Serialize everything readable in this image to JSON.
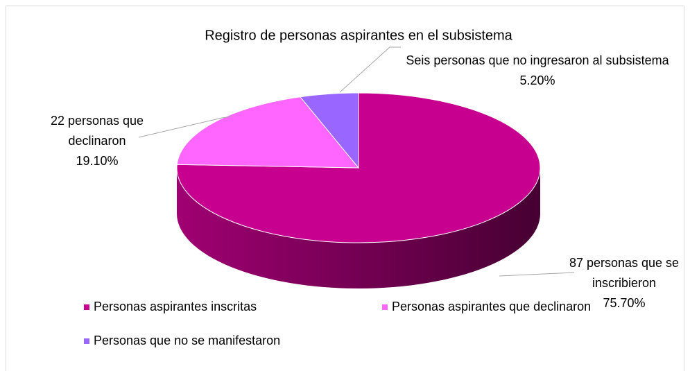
{
  "chart_data": {
    "type": "pie",
    "title": "Registro de personas aspirantes en el subsistema",
    "categories": [
      "Personas aspirantes inscritas",
      "Personas aspirantes que declinaron",
      "Personas que no se manifestaron"
    ],
    "label_names": [
      "87 personas que se inscribieron",
      "22 personas que declinaron",
      "Seis personas que no ingresaron al subsistema"
    ],
    "values": [
      75.7,
      19.1,
      5.2
    ],
    "value_labels": [
      "75.70%",
      "19.10%",
      "5.20%"
    ],
    "colors": [
      "#c8008f",
      "#ff66ff",
      "#9966ff"
    ],
    "legend": "bottom"
  }
}
